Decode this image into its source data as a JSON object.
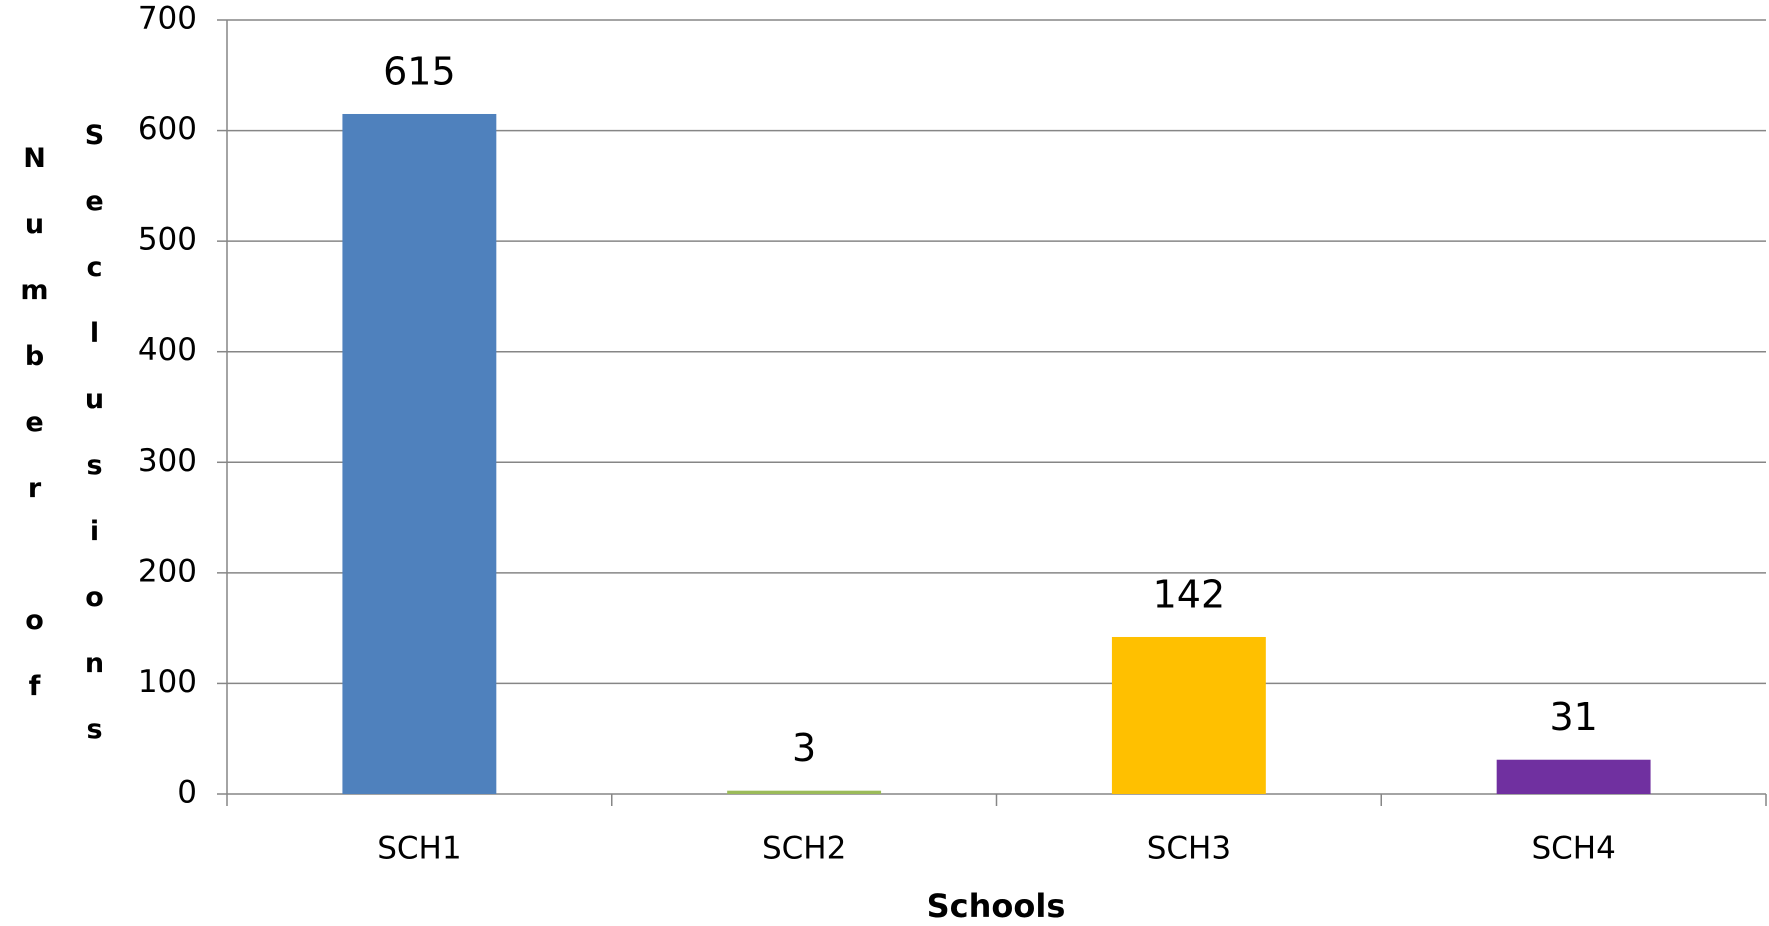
{
  "chart_data": {
    "type": "bar",
    "x_label": "Schools",
    "y_label": "Number of Seclusions",
    "categories": [
      "SCH1",
      "SCH2",
      "SCH3",
      "SCH4"
    ],
    "values": [
      615,
      3,
      142,
      31
    ],
    "colors": [
      "#4f81bd",
      "#9bbb59",
      "#ffc000",
      "#7030a0"
    ],
    "ylim": [
      0,
      700
    ],
    "yticks": [
      0,
      100,
      200,
      300,
      400,
      500,
      600,
      700
    ],
    "grid": true
  }
}
